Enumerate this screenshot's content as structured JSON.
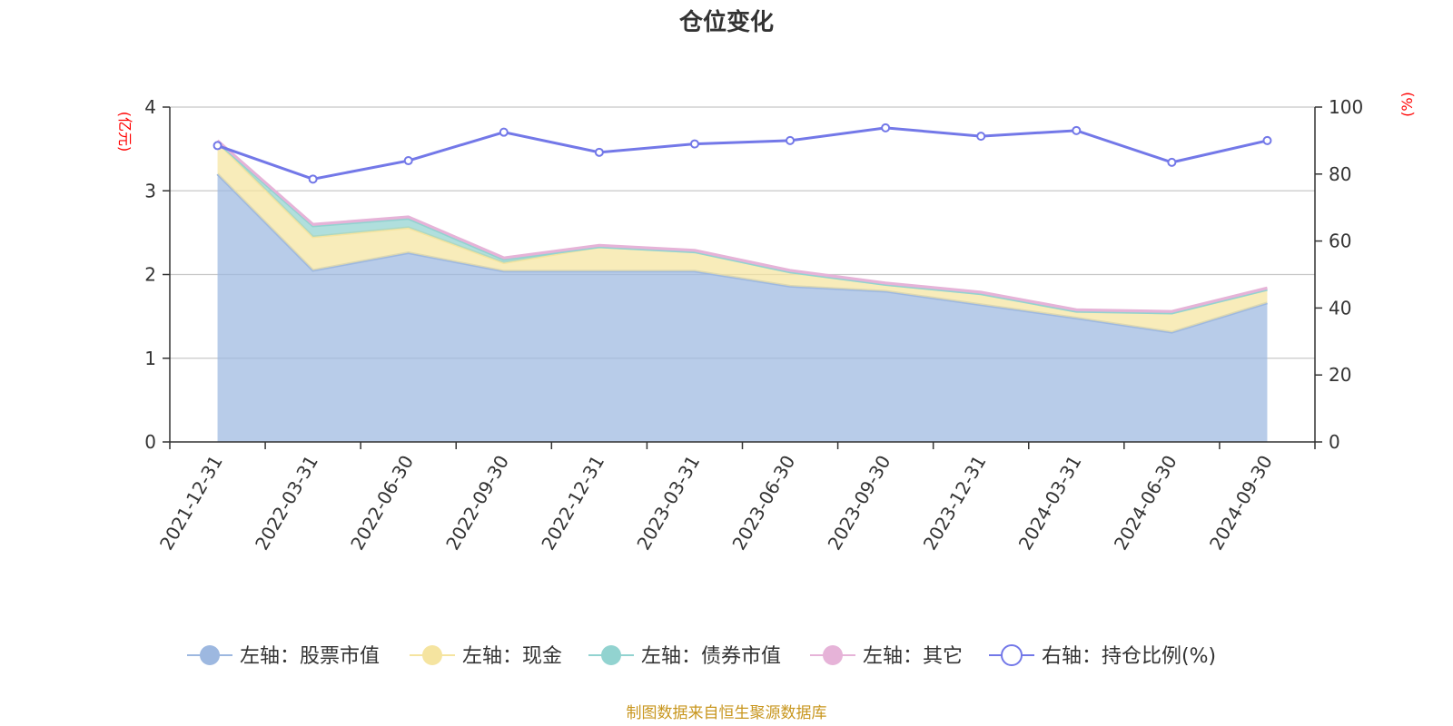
{
  "chart_data": {
    "type": "area",
    "title": "仓位变化",
    "source": "制图数据来自恒生聚源数据库",
    "categories": [
      "2021-12-31",
      "2022-03-31",
      "2022-06-30",
      "2022-09-30",
      "2022-12-31",
      "2023-03-31",
      "2023-06-30",
      "2023-09-30",
      "2023-12-31",
      "2024-03-31",
      "2024-06-30",
      "2024-09-30"
    ],
    "left_axis": {
      "unit": "(亿元)",
      "ylim": [
        0,
        4
      ],
      "ticks": [
        0,
        1,
        2,
        3,
        4
      ]
    },
    "right_axis": {
      "unit": "(%)",
      "ylim": [
        0,
        100
      ],
      "ticks": [
        0,
        20,
        40,
        60,
        80,
        100
      ]
    },
    "series": [
      {
        "name": "左轴：股票市值",
        "axis": "left",
        "kind": "stacked-area",
        "color": "#9db8e0",
        "values": [
          3.2,
          2.05,
          2.26,
          2.04,
          2.04,
          2.04,
          1.86,
          1.8,
          1.64,
          1.48,
          1.31,
          1.66
        ]
      },
      {
        "name": "左轴：现金",
        "axis": "left",
        "kind": "stacked-area",
        "color": "#f5e4a0",
        "values": [
          0.38,
          0.4,
          0.3,
          0.1,
          0.29,
          0.23,
          0.17,
          0.08,
          0.13,
          0.08,
          0.23,
          0.16
        ]
      },
      {
        "name": "左轴：债券市值",
        "axis": "left",
        "kind": "stacked-area",
        "color": "#92d3d0",
        "values": [
          0,
          0.13,
          0.11,
          0.04,
          0,
          0,
          0,
          0,
          0,
          0,
          0,
          0
        ]
      },
      {
        "name": "左轴：其它",
        "axis": "left",
        "kind": "stacked-area",
        "color": "#e6b3d8",
        "values": [
          0.02,
          0.02,
          0.02,
          0.02,
          0.02,
          0.02,
          0.02,
          0.02,
          0.02,
          0.02,
          0.02,
          0.02
        ]
      },
      {
        "name": "右轴：持仓比例(%)",
        "axis": "right",
        "kind": "line",
        "color": "#7378e8",
        "values": [
          88.5,
          78.5,
          84,
          92.5,
          86.5,
          89,
          90,
          93.8,
          91.3,
          93,
          83.5,
          90
        ]
      }
    ]
  }
}
